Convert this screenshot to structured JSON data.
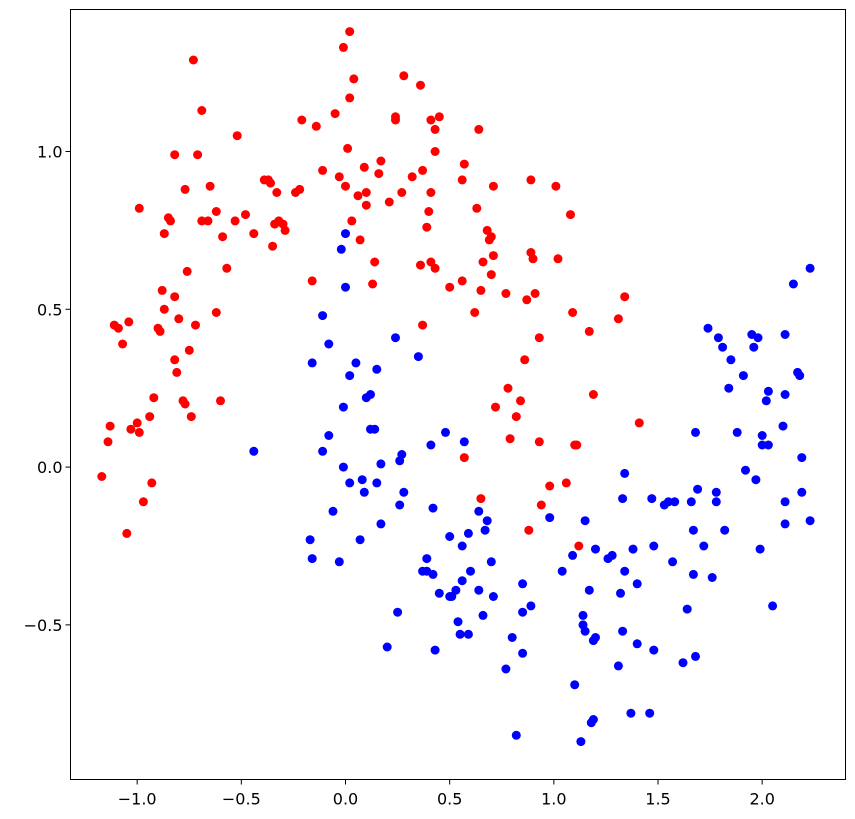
{
  "colors": {
    "class_0": "#ff0000",
    "class_1": "#0000ff",
    "axes": "#000000",
    "background": "#ffffff"
  },
  "chart_data": {
    "type": "scatter",
    "title": "",
    "xlabel": "",
    "ylabel": "",
    "grid": false,
    "legend": "none",
    "xlim": [
      -1.32,
      2.4
    ],
    "ylim": [
      -0.99,
      1.45
    ],
    "x_ticks": [
      -1.0,
      -0.5,
      0.0,
      0.5,
      1.0,
      1.5,
      2.0
    ],
    "x_tick_labels": [
      "−1.0",
      "−0.5",
      "0.0",
      "0.5",
      "1.0",
      "1.5",
      "2.0"
    ],
    "y_ticks": [
      -0.5,
      0.0,
      0.5,
      1.0
    ],
    "y_tick_labels": [
      "−0.5",
      "0.0",
      "0.5",
      "1.0"
    ],
    "series": [
      {
        "color": "#ff0000",
        "points": [
          [
            -1.17,
            -0.03
          ],
          [
            -1.14,
            0.08
          ],
          [
            -1.13,
            0.13
          ],
          [
            -1.11,
            0.45
          ],
          [
            -1.09,
            0.44
          ],
          [
            -1.07,
            0.39
          ],
          [
            -1.05,
            -0.21
          ],
          [
            -1.04,
            0.46
          ],
          [
            -1.03,
            0.12
          ],
          [
            -1.0,
            0.14
          ],
          [
            -0.99,
            0.82
          ],
          [
            -0.99,
            0.11
          ],
          [
            -0.97,
            -0.11
          ],
          [
            -0.94,
            0.16
          ],
          [
            -0.93,
            -0.05
          ],
          [
            -0.92,
            0.22
          ],
          [
            -0.9,
            0.44
          ],
          [
            -0.89,
            0.43
          ],
          [
            -0.88,
            0.56
          ],
          [
            -0.87,
            0.74
          ],
          [
            -0.87,
            0.5
          ],
          [
            -0.85,
            0.79
          ],
          [
            -0.84,
            0.78
          ],
          [
            -0.82,
            0.99
          ],
          [
            -0.82,
            0.54
          ],
          [
            -0.82,
            0.34
          ],
          [
            -0.81,
            0.3
          ],
          [
            -0.8,
            0.47
          ],
          [
            -0.78,
            0.21
          ],
          [
            -0.77,
            0.2
          ],
          [
            -0.77,
            0.88
          ],
          [
            -0.76,
            0.62
          ],
          [
            -0.75,
            0.37
          ],
          [
            -0.74,
            0.16
          ],
          [
            -0.73,
            1.29
          ],
          [
            -0.72,
            0.45
          ],
          [
            -0.71,
            0.99
          ],
          [
            -0.69,
            1.13
          ],
          [
            -0.69,
            0.78
          ],
          [
            -0.65,
            0.89
          ],
          [
            -0.66,
            0.78
          ],
          [
            -0.62,
            0.81
          ],
          [
            -0.62,
            0.49
          ],
          [
            -0.6,
            0.21
          ],
          [
            -0.59,
            0.73
          ],
          [
            -0.57,
            0.63
          ],
          [
            -0.52,
            1.05
          ],
          [
            -0.53,
            0.78
          ],
          [
            -0.48,
            0.8
          ],
          [
            -0.44,
            0.74
          ],
          [
            -0.39,
            0.91
          ],
          [
            -0.37,
            0.91
          ],
          [
            -0.36,
            0.9
          ],
          [
            -0.35,
            0.7
          ],
          [
            -0.34,
            0.77
          ],
          [
            -0.33,
            0.87
          ],
          [
            -0.32,
            0.78
          ],
          [
            -0.3,
            0.77
          ],
          [
            -0.29,
            0.75
          ],
          [
            -0.24,
            0.87
          ],
          [
            -0.22,
            0.88
          ],
          [
            -0.21,
            1.1
          ],
          [
            -0.16,
            0.59
          ],
          [
            -0.14,
            1.08
          ],
          [
            -0.11,
            0.94
          ],
          [
            -0.05,
            1.12
          ],
          [
            -0.03,
            0.92
          ],
          [
            -0.01,
            1.33
          ],
          [
            0.0,
            0.89
          ],
          [
            0.01,
            1.01
          ],
          [
            0.02,
            1.17
          ],
          [
            0.02,
            1.38
          ],
          [
            0.03,
            0.78
          ],
          [
            0.04,
            1.23
          ],
          [
            0.06,
            0.86
          ],
          [
            0.07,
            0.72
          ],
          [
            0.09,
            0.95
          ],
          [
            0.1,
            0.83
          ],
          [
            0.1,
            0.87
          ],
          [
            0.13,
            0.58
          ],
          [
            0.14,
            0.65
          ],
          [
            0.16,
            0.93
          ],
          [
            0.17,
            0.97
          ],
          [
            0.21,
            0.84
          ],
          [
            0.24,
            1.11
          ],
          [
            0.24,
            1.1
          ],
          [
            0.27,
            0.87
          ],
          [
            0.28,
            1.24
          ],
          [
            0.32,
            0.92
          ],
          [
            0.36,
            0.64
          ],
          [
            0.36,
            1.21
          ],
          [
            0.37,
            0.45
          ],
          [
            0.37,
            0.94
          ],
          [
            0.39,
            0.76
          ],
          [
            0.4,
            0.81
          ],
          [
            0.41,
            0.87
          ],
          [
            0.41,
            1.1
          ],
          [
            0.41,
            0.65
          ],
          [
            0.43,
            1.07
          ],
          [
            0.43,
            1.0
          ],
          [
            0.43,
            0.63
          ],
          [
            0.45,
            1.11
          ],
          [
            0.5,
            0.57
          ],
          [
            0.56,
            0.91
          ],
          [
            0.57,
            0.03
          ],
          [
            0.56,
            0.59
          ],
          [
            0.57,
            0.96
          ],
          [
            0.62,
            0.49
          ],
          [
            0.63,
            0.82
          ],
          [
            0.64,
            1.07
          ],
          [
            0.65,
            -0.1
          ],
          [
            0.65,
            0.56
          ],
          [
            0.66,
            0.65
          ],
          [
            0.68,
            0.75
          ],
          [
            0.69,
            0.72
          ],
          [
            0.7,
            0.73
          ],
          [
            0.7,
            0.61
          ],
          [
            0.71,
            0.89
          ],
          [
            0.71,
            0.67
          ],
          [
            0.72,
            0.19
          ],
          [
            0.77,
            0.55
          ],
          [
            0.78,
            0.25
          ],
          [
            0.79,
            0.09
          ],
          [
            0.82,
            0.16
          ],
          [
            0.84,
            0.21
          ],
          [
            0.86,
            0.34
          ],
          [
            0.87,
            0.53
          ],
          [
            0.88,
            -0.2
          ],
          [
            0.89,
            0.91
          ],
          [
            0.89,
            0.68
          ],
          [
            0.9,
            0.66
          ],
          [
            0.91,
            0.55
          ],
          [
            0.93,
            0.08
          ],
          [
            0.93,
            0.41
          ],
          [
            0.94,
            -0.12
          ],
          [
            0.98,
            -0.06
          ],
          [
            1.01,
            0.89
          ],
          [
            1.02,
            0.66
          ],
          [
            1.06,
            -0.05
          ],
          [
            1.08,
            0.8
          ],
          [
            1.09,
            0.49
          ],
          [
            1.1,
            0.07
          ],
          [
            1.11,
            0.07
          ],
          [
            1.12,
            -0.25
          ],
          [
            1.17,
            0.43
          ],
          [
            1.19,
            0.23
          ],
          [
            1.31,
            0.47
          ],
          [
            1.34,
            0.54
          ],
          [
            1.41,
            0.14
          ]
        ]
      },
      {
        "color": "#0000ff",
        "points": [
          [
            -0.44,
            0.05
          ],
          [
            -0.17,
            -0.23
          ],
          [
            -0.16,
            0.33
          ],
          [
            -0.16,
            -0.29
          ],
          [
            -0.11,
            0.48
          ],
          [
            -0.11,
            0.05
          ],
          [
            -0.08,
            0.39
          ],
          [
            -0.08,
            0.1
          ],
          [
            -0.06,
            -0.14
          ],
          [
            -0.03,
            -0.3
          ],
          [
            -0.02,
            0.69
          ],
          [
            -0.01,
            0.0
          ],
          [
            -0.01,
            0.19
          ],
          [
            0.0,
            0.74
          ],
          [
            0.0,
            0.57
          ],
          [
            0.02,
            -0.05
          ],
          [
            0.02,
            0.29
          ],
          [
            0.05,
            0.33
          ],
          [
            0.07,
            -0.23
          ],
          [
            0.08,
            -0.04
          ],
          [
            0.09,
            -0.08
          ],
          [
            0.1,
            0.22
          ],
          [
            0.12,
            0.23
          ],
          [
            0.12,
            0.12
          ],
          [
            0.14,
            0.12
          ],
          [
            0.15,
            0.31
          ],
          [
            0.15,
            -0.05
          ],
          [
            0.17,
            0.01
          ],
          [
            0.17,
            -0.18
          ],
          [
            0.2,
            -0.57
          ],
          [
            0.24,
            0.41
          ],
          [
            0.25,
            -0.46
          ],
          [
            0.26,
            -0.12
          ],
          [
            0.26,
            0.02
          ],
          [
            0.27,
            0.04
          ],
          [
            0.28,
            -0.08
          ],
          [
            0.35,
            0.35
          ],
          [
            0.37,
            -0.33
          ],
          [
            0.39,
            -0.33
          ],
          [
            0.39,
            -0.29
          ],
          [
            0.41,
            0.07
          ],
          [
            0.42,
            -0.34
          ],
          [
            0.42,
            -0.13
          ],
          [
            0.43,
            -0.58
          ],
          [
            0.45,
            -0.4
          ],
          [
            0.48,
            0.11
          ],
          [
            0.5,
            -0.22
          ],
          [
            0.5,
            -0.41
          ],
          [
            0.51,
            -0.41
          ],
          [
            0.53,
            -0.39
          ],
          [
            0.54,
            -0.49
          ],
          [
            0.55,
            -0.53
          ],
          [
            0.56,
            -0.36
          ],
          [
            0.56,
            -0.25
          ],
          [
            0.57,
            0.08
          ],
          [
            0.59,
            -0.53
          ],
          [
            0.59,
            -0.21
          ],
          [
            0.6,
            -0.33
          ],
          [
            0.64,
            -0.39
          ],
          [
            0.64,
            -0.14
          ],
          [
            0.66,
            -0.47
          ],
          [
            0.67,
            -0.2
          ],
          [
            0.68,
            -0.17
          ],
          [
            0.7,
            -0.3
          ],
          [
            0.71,
            -0.41
          ],
          [
            0.77,
            -0.64
          ],
          [
            0.8,
            -0.54
          ],
          [
            0.82,
            -0.85
          ],
          [
            0.85,
            -0.37
          ],
          [
            0.85,
            -0.46
          ],
          [
            0.85,
            -0.59
          ],
          [
            0.89,
            -0.44
          ],
          [
            0.98,
            -0.16
          ],
          [
            1.04,
            -0.33
          ],
          [
            1.09,
            -0.28
          ],
          [
            1.1,
            -0.69
          ],
          [
            1.13,
            -0.87
          ],
          [
            1.14,
            -0.5
          ],
          [
            1.14,
            -0.47
          ],
          [
            1.15,
            -0.17
          ],
          [
            1.15,
            -0.52
          ],
          [
            1.17,
            -0.39
          ],
          [
            1.18,
            -0.81
          ],
          [
            1.19,
            -0.8
          ],
          [
            1.19,
            -0.55
          ],
          [
            1.2,
            -0.26
          ],
          [
            1.2,
            -0.54
          ],
          [
            1.26,
            -0.29
          ],
          [
            1.28,
            -0.28
          ],
          [
            1.31,
            -0.63
          ],
          [
            1.32,
            -0.4
          ],
          [
            1.33,
            -0.1
          ],
          [
            1.33,
            -0.52
          ],
          [
            1.34,
            -0.02
          ],
          [
            1.34,
            -0.33
          ],
          [
            1.37,
            -0.78
          ],
          [
            1.38,
            -0.26
          ],
          [
            1.4,
            -0.56
          ],
          [
            1.4,
            -0.37
          ],
          [
            1.46,
            -0.78
          ],
          [
            1.47,
            -0.1
          ],
          [
            1.48,
            -0.58
          ],
          [
            1.48,
            -0.25
          ],
          [
            1.53,
            -0.12
          ],
          [
            1.55,
            -0.11
          ],
          [
            1.57,
            -0.3
          ],
          [
            1.58,
            -0.11
          ],
          [
            1.62,
            -0.62
          ],
          [
            1.64,
            -0.45
          ],
          [
            1.66,
            -0.11
          ],
          [
            1.67,
            -0.2
          ],
          [
            1.67,
            -0.34
          ],
          [
            1.68,
            -0.6
          ],
          [
            1.68,
            0.11
          ],
          [
            1.69,
            -0.07
          ],
          [
            1.72,
            -0.25
          ],
          [
            1.74,
            0.44
          ],
          [
            1.76,
            -0.35
          ],
          [
            1.78,
            -0.08
          ],
          [
            1.78,
            -0.11
          ],
          [
            1.79,
            0.41
          ],
          [
            1.81,
            0.38
          ],
          [
            1.82,
            -0.2
          ],
          [
            1.84,
            0.25
          ],
          [
            1.85,
            0.34
          ],
          [
            1.88,
            0.11
          ],
          [
            1.91,
            0.29
          ],
          [
            1.92,
            -0.01
          ],
          [
            1.95,
            0.42
          ],
          [
            1.96,
            0.38
          ],
          [
            1.97,
            -0.04
          ],
          [
            1.98,
            0.41
          ],
          [
            1.99,
            -0.26
          ],
          [
            2.0,
            0.1
          ],
          [
            2.0,
            0.07
          ],
          [
            2.02,
            0.21
          ],
          [
            2.03,
            0.24
          ],
          [
            2.03,
            0.07
          ],
          [
            2.05,
            -0.44
          ],
          [
            2.1,
            0.13
          ],
          [
            2.11,
            0.42
          ],
          [
            2.11,
            -0.18
          ],
          [
            2.11,
            0.23
          ],
          [
            2.11,
            -0.11
          ],
          [
            2.15,
            0.58
          ],
          [
            2.17,
            0.3
          ],
          [
            2.18,
            0.29
          ],
          [
            2.19,
            0.03
          ],
          [
            2.19,
            -0.08
          ],
          [
            2.23,
            -0.17
          ],
          [
            2.23,
            0.63
          ]
        ]
      }
    ]
  }
}
